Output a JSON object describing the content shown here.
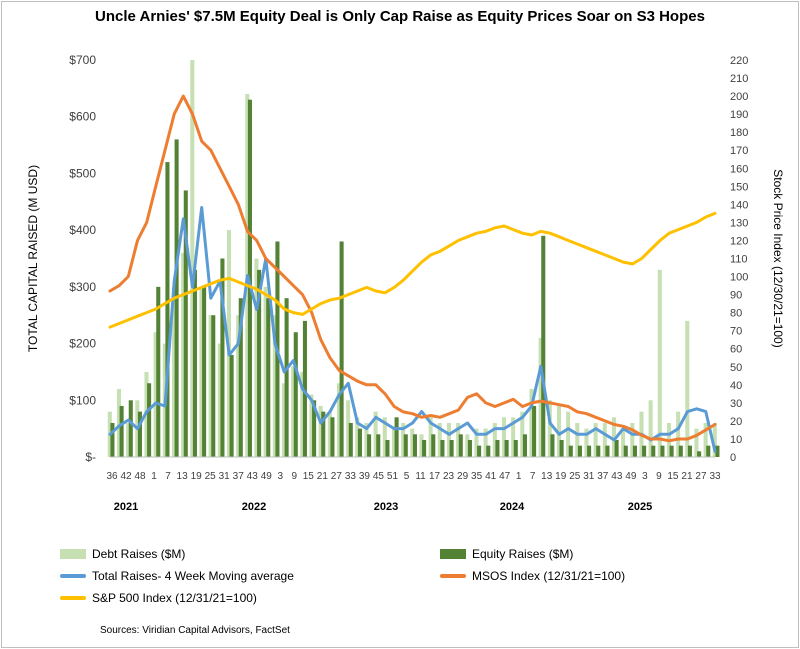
{
  "chart_data": {
    "type": "bar+line",
    "title": "Uncle Arnies' $7.5M Equity Deal is Only Cap Raise as Equity Prices Soar on S3 Hopes",
    "ylabel": "TOTAL  CAPITAL RAISED (M USD)",
    "y2label": "Stock Price Index (12/30/21=100)",
    "ylim": [
      0,
      700
    ],
    "y2lim": [
      0,
      220
    ],
    "yticks": [
      "$-",
      "$100",
      "$200",
      "$300",
      "$400",
      "$500",
      "$600",
      "$700"
    ],
    "y2ticks": [
      "0",
      "10",
      "20",
      "30",
      "40",
      "50",
      "60",
      "70",
      "80",
      "90",
      "100",
      "110",
      "120",
      "130",
      "140",
      "150",
      "160",
      "170",
      "180",
      "190",
      "200",
      "210",
      "220"
    ],
    "xtick_labels": [
      "36",
      "42",
      "48",
      "1",
      "7",
      "13",
      "19",
      "25",
      "31",
      "37",
      "43",
      "49",
      "3",
      "9",
      "15",
      "21",
      "27",
      "33",
      "39",
      "45",
      "51",
      "5",
      "11",
      "17",
      "23",
      "29",
      "35",
      "41",
      "47",
      "1",
      "7",
      "13",
      "19",
      "25",
      "31",
      "37",
      "43",
      "49",
      "3",
      "9",
      "15",
      "21",
      "27",
      "33"
    ],
    "years": [
      "2021",
      "2022",
      "2023",
      "2024",
      "2025"
    ],
    "x": [
      0,
      4,
      8,
      12,
      16,
      20,
      24,
      28,
      32,
      36,
      40,
      44,
      48,
      52,
      56,
      60,
      64,
      68,
      72,
      76,
      80,
      84,
      88,
      92,
      96,
      100,
      104,
      108,
      112,
      116,
      120,
      124,
      128,
      132,
      136,
      140,
      144,
      148,
      152,
      156,
      160,
      164,
      168,
      172,
      176,
      180,
      184,
      188,
      192,
      196,
      200,
      204,
      208,
      212,
      216,
      220,
      224,
      228,
      232,
      236,
      240,
      244,
      248,
      252,
      256,
      260,
      264
    ],
    "series": [
      {
        "name": "Debt Raises ($M)",
        "kind": "bar",
        "color": "#c6e0b4",
        "values": [
          80,
          120,
          60,
          100,
          150,
          220,
          200,
          300,
          360,
          700,
          300,
          250,
          200,
          400,
          250,
          640,
          350,
          300,
          250,
          130,
          160,
          150,
          110,
          90,
          80,
          130,
          100,
          70,
          60,
          80,
          70,
          50,
          60,
          50,
          40,
          70,
          60,
          60,
          60,
          40,
          50,
          50,
          60,
          70,
          70,
          80,
          120,
          210,
          100,
          90,
          80,
          60,
          50,
          60,
          60,
          70,
          50,
          60,
          80,
          100,
          330,
          60,
          80,
          240,
          50,
          60,
          60
        ]
      },
      {
        "name": "Equity Raises ($M)",
        "kind": "bar",
        "color": "#548235",
        "values": [
          60,
          90,
          100,
          80,
          130,
          300,
          520,
          560,
          470,
          330,
          300,
          250,
          350,
          180,
          280,
          630,
          330,
          280,
          380,
          280,
          220,
          240,
          100,
          80,
          70,
          380,
          60,
          50,
          40,
          40,
          30,
          70,
          40,
          40,
          30,
          40,
          30,
          30,
          40,
          30,
          20,
          20,
          30,
          30,
          30,
          40,
          90,
          390,
          40,
          30,
          20,
          20,
          20,
          20,
          20,
          30,
          20,
          20,
          20,
          20,
          20,
          20,
          20,
          20,
          10,
          20,
          20
        ]
      },
      {
        "name": "Total Raises- 4 Week Moving average",
        "kind": "line",
        "color": "#5b9bd5",
        "values": [
          40,
          55,
          65,
          50,
          80,
          95,
          90,
          310,
          420,
          300,
          440,
          280,
          310,
          180,
          200,
          320,
          260,
          350,
          200,
          150,
          170,
          120,
          100,
          60,
          80,
          110,
          130,
          60,
          50,
          70,
          60,
          50,
          50,
          60,
          80,
          60,
          50,
          40,
          50,
          60,
          40,
          40,
          50,
          50,
          60,
          70,
          90,
          160,
          60,
          40,
          50,
          40,
          40,
          50,
          40,
          30,
          50,
          40,
          40,
          30,
          40,
          40,
          50,
          80,
          85,
          80,
          10
        ]
      },
      {
        "name": "MSOS Index (12/31/21=100)",
        "kind": "line",
        "color": "#ed7d31",
        "values": [
          92,
          95,
          100,
          120,
          130,
          150,
          170,
          190,
          200,
          190,
          175,
          170,
          160,
          150,
          140,
          125,
          120,
          110,
          105,
          100,
          95,
          90,
          80,
          65,
          55,
          48,
          45,
          42,
          40,
          40,
          35,
          28,
          25,
          24,
          22,
          23,
          22,
          24,
          26,
          33,
          35,
          30,
          28,
          30,
          32,
          28,
          30,
          31,
          30,
          29,
          28,
          25,
          24,
          22,
          20,
          18,
          17,
          15,
          12,
          10,
          10,
          9,
          10,
          10,
          12,
          15,
          18
        ]
      },
      {
        "name": "S&P 500 Index (12/31/21=100)",
        "kind": "line",
        "color": "#ffc000",
        "values": [
          72,
          74,
          76,
          78,
          80,
          82,
          85,
          88,
          90,
          92,
          94,
          96,
          98,
          99,
          97,
          95,
          93,
          90,
          87,
          82,
          80,
          79,
          82,
          85,
          87,
          88,
          90,
          92,
          94,
          92,
          91,
          94,
          98,
          103,
          108,
          112,
          114,
          117,
          120,
          122,
          124,
          125,
          127,
          128,
          126,
          124,
          123,
          125,
          124,
          122,
          120,
          118,
          116,
          114,
          112,
          110,
          108,
          107,
          110,
          115,
          120,
          124,
          126,
          128,
          130,
          133,
          135
        ]
      }
    ],
    "legend_position": "bottom",
    "grid": false
  },
  "source_note": "Sources: Viridian Capital Advisors, FactSet"
}
